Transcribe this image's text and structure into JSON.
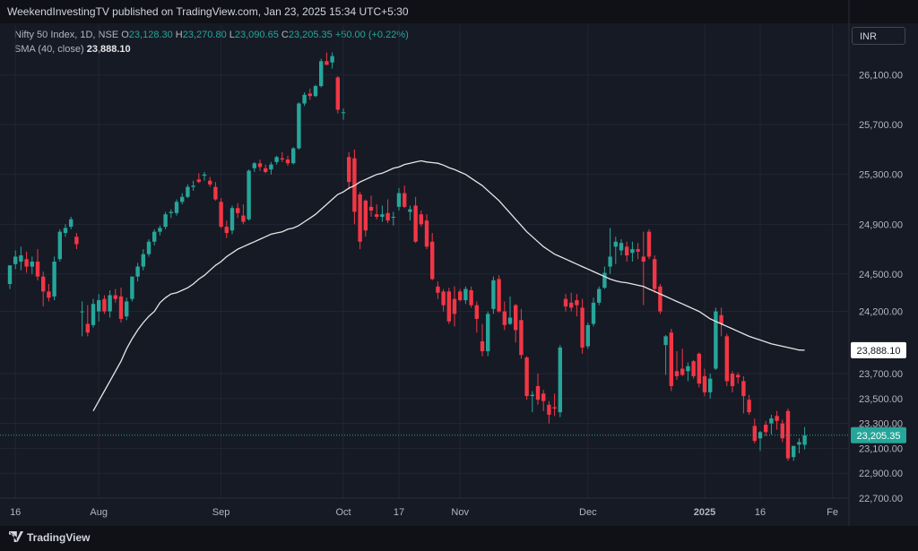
{
  "header": {
    "publish_line": "WeekendInvestingTV published on TradingView.com, Jan 23, 2025 15:34 UTC+5:30"
  },
  "legend": {
    "symbol": "Nifty 50 Index, 1D, NSE",
    "o_label": "O",
    "o_value": "23,128.30",
    "h_label": "H",
    "h_value": "23,270.80",
    "l_label": "L",
    "l_value": "23,090.65",
    "c_label": "C",
    "c_value": "23,205.35",
    "change": "+50.00 (+0.22%)",
    "sma_label": "SMA (40, close)",
    "sma_value": "23,888.10"
  },
  "currency": "INR",
  "footer": {
    "brand": "TradingView"
  },
  "colors": {
    "up": "#26a69a",
    "down": "#f23645",
    "sma": "#e6e6e6",
    "background": "#161a25"
  },
  "chart_data": {
    "type": "candlestick",
    "symbol": "Nifty 50 Index",
    "interval": "1D",
    "exchange": "NSE",
    "ylim": [
      22700,
      26500
    ],
    "y_ticks": [
      "26,100.00",
      "25,700.00",
      "25,300.00",
      "24,900.00",
      "24,500.00",
      "24,200.00",
      "23,700.00",
      "23,500.00",
      "23,300.00",
      "23,100.00",
      "22,900.00",
      "22,700.00"
    ],
    "x_ticks": [
      "16",
      "Aug",
      "Sep",
      "Oct",
      "17",
      "Nov",
      "Dec",
      "2025",
      "16",
      "Fe"
    ],
    "x_tick_index": [
      1,
      16,
      38,
      60,
      70,
      81,
      104,
      125,
      135,
      148
    ],
    "price_label": {
      "value": 23205.35,
      "text": "23,205.35"
    },
    "sma_label": {
      "value": 23888.1,
      "text": "23,888.10"
    },
    "sma": {
      "name": "SMA (40, close)",
      "values": [
        23400,
        23480,
        23560,
        23640,
        23720,
        23800,
        23900,
        23980,
        24050,
        24110,
        24160,
        24200,
        24270,
        24310,
        24340,
        24350,
        24370,
        24390,
        24420,
        24460,
        24490,
        24530,
        24570,
        24600,
        24640,
        24670,
        24700,
        24720,
        24740,
        24760,
        24780,
        24800,
        24820,
        24830,
        24840,
        24860,
        24870,
        24890,
        24920,
        24950,
        24980,
        25020,
        25060,
        25100,
        25140,
        25160,
        25190,
        25210,
        25240,
        25260,
        25280,
        25300,
        25310,
        25330,
        25350,
        25360,
        25380,
        25390,
        25400,
        25410,
        25400,
        25395,
        25390,
        25375,
        25355,
        25340,
        25320,
        25300,
        25270,
        25240,
        25210,
        25170,
        25130,
        25090,
        25040,
        24990,
        24940,
        24890,
        24840,
        24800,
        24760,
        24720,
        24690,
        24660,
        24640,
        24620,
        24600,
        24580,
        24560,
        24540,
        24520,
        24500,
        24480,
        24460,
        24445,
        24435,
        24430,
        24420,
        24410,
        24400,
        24380,
        24360,
        24340,
        24320,
        24300,
        24280,
        24260,
        24240,
        24220,
        24200,
        24170,
        24140,
        24120,
        24100,
        24080,
        24060,
        24040,
        24020,
        24000,
        23985,
        23970,
        23955,
        23940,
        23930,
        23920,
        23910,
        23900,
        23890,
        23888.1
      ]
    },
    "candles": [
      {
        "o": 24420,
        "h": 24570,
        "l": 24380,
        "c": 24570
      },
      {
        "o": 24580,
        "h": 24690,
        "l": 24540,
        "c": 24640
      },
      {
        "o": 24600,
        "h": 24720,
        "l": 24530,
        "c": 24650
      },
      {
        "o": 24620,
        "h": 24680,
        "l": 24510,
        "c": 24560
      },
      {
        "o": 24560,
        "h": 24640,
        "l": 24500,
        "c": 24600
      },
      {
        "o": 24600,
        "h": 24700,
        "l": 24450,
        "c": 24480
      },
      {
        "o": 24480,
        "h": 24520,
        "l": 24240,
        "c": 24360
      },
      {
        "o": 24360,
        "h": 24420,
        "l": 24280,
        "c": 24310
      },
      {
        "o": 24320,
        "h": 24640,
        "l": 24290,
        "c": 24600
      },
      {
        "o": 24620,
        "h": 24860,
        "l": 24600,
        "c": 24840
      },
      {
        "o": 24830,
        "h": 24900,
        "l": 24800,
        "c": 24870
      },
      {
        "o": 24880,
        "h": 24960,
        "l": 24860,
        "c": 24940
      },
      {
        "o": 24800,
        "h": 24830,
        "l": 24700,
        "c": 24740
      },
      {
        "o": 24200,
        "h": 24280,
        "l": 24000,
        "c": 24200
      },
      {
        "o": 24100,
        "h": 24250,
        "l": 24000,
        "c": 24030
      },
      {
        "o": 24090,
        "h": 24300,
        "l": 24070,
        "c": 24260
      },
      {
        "o": 24200,
        "h": 24340,
        "l": 24120,
        "c": 24290
      },
      {
        "o": 24300,
        "h": 24330,
        "l": 24180,
        "c": 24200
      },
      {
        "o": 24200,
        "h": 24370,
        "l": 24150,
        "c": 24330
      },
      {
        "o": 24330,
        "h": 24380,
        "l": 24270,
        "c": 24300
      },
      {
        "o": 24320,
        "h": 24390,
        "l": 24110,
        "c": 24140
      },
      {
        "o": 24160,
        "h": 24310,
        "l": 24130,
        "c": 24280
      },
      {
        "o": 24300,
        "h": 24480,
        "l": 24280,
        "c": 24480
      },
      {
        "o": 24480,
        "h": 24590,
        "l": 24440,
        "c": 24560
      },
      {
        "o": 24560,
        "h": 24700,
        "l": 24530,
        "c": 24660
      },
      {
        "o": 24660,
        "h": 24780,
        "l": 24640,
        "c": 24760
      },
      {
        "o": 24760,
        "h": 24860,
        "l": 24730,
        "c": 24840
      },
      {
        "o": 24840,
        "h": 24890,
        "l": 24810,
        "c": 24870
      },
      {
        "o": 24880,
        "h": 25000,
        "l": 24860,
        "c": 24980
      },
      {
        "o": 24990,
        "h": 25020,
        "l": 24950,
        "c": 25000
      },
      {
        "o": 24990,
        "h": 25100,
        "l": 24970,
        "c": 25080
      },
      {
        "o": 25080,
        "h": 25150,
        "l": 25060,
        "c": 25120
      },
      {
        "o": 25120,
        "h": 25220,
        "l": 25110,
        "c": 25200
      },
      {
        "o": 25200,
        "h": 25250,
        "l": 25170,
        "c": 25210
      },
      {
        "o": 25260,
        "h": 25310,
        "l": 25230,
        "c": 25240
      },
      {
        "o": 25290,
        "h": 25320,
        "l": 25250,
        "c": 25300
      },
      {
        "o": 25250,
        "h": 25280,
        "l": 25200,
        "c": 25220
      },
      {
        "o": 25200,
        "h": 25240,
        "l": 25090,
        "c": 25100
      },
      {
        "o": 25080,
        "h": 25110,
        "l": 24870,
        "c": 24880
      },
      {
        "o": 24880,
        "h": 24930,
        "l": 24790,
        "c": 24830
      },
      {
        "o": 24850,
        "h": 25050,
        "l": 24820,
        "c": 25030
      },
      {
        "o": 25030,
        "h": 25070,
        "l": 24950,
        "c": 24990
      },
      {
        "o": 24970,
        "h": 25060,
        "l": 24900,
        "c": 24920
      },
      {
        "o": 24940,
        "h": 25340,
        "l": 24930,
        "c": 25330
      },
      {
        "o": 25350,
        "h": 25400,
        "l": 25320,
        "c": 25390
      },
      {
        "o": 25390,
        "h": 25420,
        "l": 25330,
        "c": 25360
      },
      {
        "o": 25350,
        "h": 25380,
        "l": 25310,
        "c": 25320
      },
      {
        "o": 25340,
        "h": 25400,
        "l": 25300,
        "c": 25380
      },
      {
        "o": 25400,
        "h": 25450,
        "l": 25380,
        "c": 25440
      },
      {
        "o": 25430,
        "h": 25480,
        "l": 25400,
        "c": 25420
      },
      {
        "o": 25420,
        "h": 25450,
        "l": 25370,
        "c": 25390
      },
      {
        "o": 25390,
        "h": 25520,
        "l": 25380,
        "c": 25510
      },
      {
        "o": 25510,
        "h": 25880,
        "l": 25500,
        "c": 25870
      },
      {
        "o": 25870,
        "h": 25960,
        "l": 25850,
        "c": 25940
      },
      {
        "o": 25950,
        "h": 25990,
        "l": 25900,
        "c": 25930
      },
      {
        "o": 25930,
        "h": 26020,
        "l": 25920,
        "c": 26010
      },
      {
        "o": 26010,
        "h": 26230,
        "l": 26000,
        "c": 26210
      },
      {
        "o": 26210,
        "h": 26280,
        "l": 26180,
        "c": 26180
      },
      {
        "o": 26200,
        "h": 26280,
        "l": 26150,
        "c": 26250
      },
      {
        "o": 26080,
        "h": 26090,
        "l": 25790,
        "c": 25820
      },
      {
        "o": 25800,
        "h": 25830,
        "l": 25740,
        "c": 25800
      },
      {
        "o": 25440,
        "h": 25480,
        "l": 25180,
        "c": 25240
      },
      {
        "o": 25430,
        "h": 25500,
        "l": 24900,
        "c": 25000
      },
      {
        "o": 25140,
        "h": 25160,
        "l": 24700,
        "c": 24760
      },
      {
        "o": 25090,
        "h": 25100,
        "l": 24800,
        "c": 24850
      },
      {
        "o": 25040,
        "h": 25130,
        "l": 24960,
        "c": 25010
      },
      {
        "o": 24980,
        "h": 25060,
        "l": 24940,
        "c": 24960
      },
      {
        "o": 24960,
        "h": 25050,
        "l": 24920,
        "c": 24980
      },
      {
        "o": 24990,
        "h": 25100,
        "l": 24910,
        "c": 24930
      },
      {
        "o": 24960,
        "h": 25000,
        "l": 24890,
        "c": 24960
      },
      {
        "o": 25040,
        "h": 25190,
        "l": 25010,
        "c": 25150
      },
      {
        "o": 25150,
        "h": 25210,
        "l": 25030,
        "c": 25040
      },
      {
        "o": 25000,
        "h": 25050,
        "l": 24930,
        "c": 25020
      },
      {
        "o": 25050,
        "h": 25120,
        "l": 24750,
        "c": 24760
      },
      {
        "o": 24980,
        "h": 25010,
        "l": 24880,
        "c": 24900
      },
      {
        "o": 24930,
        "h": 24980,
        "l": 24700,
        "c": 24720
      },
      {
        "o": 24760,
        "h": 24830,
        "l": 24450,
        "c": 24460
      },
      {
        "o": 24400,
        "h": 24440,
        "l": 24300,
        "c": 24350
      },
      {
        "o": 24360,
        "h": 24380,
        "l": 24200,
        "c": 24250
      },
      {
        "o": 24360,
        "h": 24390,
        "l": 24100,
        "c": 24120
      },
      {
        "o": 24300,
        "h": 24400,
        "l": 24080,
        "c": 24180
      },
      {
        "o": 24360,
        "h": 24380,
        "l": 24280,
        "c": 24290
      },
      {
        "o": 24290,
        "h": 24400,
        "l": 24260,
        "c": 24380
      },
      {
        "o": 24370,
        "h": 24400,
        "l": 24230,
        "c": 24250
      },
      {
        "o": 24250,
        "h": 24280,
        "l": 24030,
        "c": 24140
      },
      {
        "o": 23960,
        "h": 24100,
        "l": 23840,
        "c": 23880
      },
      {
        "o": 23880,
        "h": 24200,
        "l": 23840,
        "c": 24180
      },
      {
        "o": 24220,
        "h": 24480,
        "l": 24180,
        "c": 24450
      },
      {
        "o": 24460,
        "h": 24490,
        "l": 24190,
        "c": 24200
      },
      {
        "o": 24200,
        "h": 24280,
        "l": 24050,
        "c": 24090
      },
      {
        "o": 24100,
        "h": 24320,
        "l": 24090,
        "c": 24150
      },
      {
        "o": 24250,
        "h": 24260,
        "l": 23950,
        "c": 24050
      },
      {
        "o": 24130,
        "h": 24220,
        "l": 23820,
        "c": 23850
      },
      {
        "o": 23830,
        "h": 23840,
        "l": 23490,
        "c": 23520
      },
      {
        "o": 23520,
        "h": 23560,
        "l": 23390,
        "c": 23530
      },
      {
        "o": 23600,
        "h": 23700,
        "l": 23450,
        "c": 23490
      },
      {
        "o": 23540,
        "h": 23570,
        "l": 23400,
        "c": 23480
      },
      {
        "o": 23450,
        "h": 23480,
        "l": 23300,
        "c": 23370
      },
      {
        "o": 23430,
        "h": 23540,
        "l": 23360,
        "c": 23420
      },
      {
        "o": 23390,
        "h": 23930,
        "l": 23350,
        "c": 23910
      },
      {
        "o": 24300,
        "h": 24340,
        "l": 24200,
        "c": 24240
      },
      {
        "o": 24270,
        "h": 24350,
        "l": 24200,
        "c": 24230
      },
      {
        "o": 24290,
        "h": 24340,
        "l": 24160,
        "c": 24250
      },
      {
        "o": 24230,
        "h": 24300,
        "l": 23860,
        "c": 23910
      },
      {
        "o": 23920,
        "h": 24110,
        "l": 23900,
        "c": 24090
      },
      {
        "o": 24100,
        "h": 24310,
        "l": 24080,
        "c": 24270
      },
      {
        "o": 24270,
        "h": 24400,
        "l": 24250,
        "c": 24380
      },
      {
        "o": 24390,
        "h": 24560,
        "l": 24380,
        "c": 24510
      },
      {
        "o": 24560,
        "h": 24870,
        "l": 24500,
        "c": 24640
      },
      {
        "o": 24720,
        "h": 24800,
        "l": 24580,
        "c": 24760
      },
      {
        "o": 24690,
        "h": 24780,
        "l": 24650,
        "c": 24750
      },
      {
        "o": 24720,
        "h": 24760,
        "l": 24600,
        "c": 24650
      },
      {
        "o": 24670,
        "h": 24760,
        "l": 24600,
        "c": 24700
      },
      {
        "o": 24700,
        "h": 24750,
        "l": 24620,
        "c": 24680
      },
      {
        "o": 24640,
        "h": 24840,
        "l": 24250,
        "c": 24600
      },
      {
        "o": 24840,
        "h": 24860,
        "l": 24620,
        "c": 24640
      },
      {
        "o": 24620,
        "h": 24650,
        "l": 24350,
        "c": 24380
      },
      {
        "o": 24400,
        "h": 24420,
        "l": 24180,
        "c": 24200
      },
      {
        "o": 23930,
        "h": 24010,
        "l": 23690,
        "c": 24000
      },
      {
        "o": 24030,
        "h": 24060,
        "l": 23560,
        "c": 23600
      },
      {
        "o": 23720,
        "h": 23880,
        "l": 23650,
        "c": 23680
      },
      {
        "o": 23740,
        "h": 23900,
        "l": 23680,
        "c": 23690
      },
      {
        "o": 23720,
        "h": 23790,
        "l": 23640,
        "c": 23760
      },
      {
        "o": 23800,
        "h": 23810,
        "l": 23660,
        "c": 23680
      },
      {
        "o": 23860,
        "h": 23870,
        "l": 23590,
        "c": 23620
      },
      {
        "o": 23680,
        "h": 23740,
        "l": 23520,
        "c": 23550
      },
      {
        "o": 23550,
        "h": 23700,
        "l": 23500,
        "c": 23660
      },
      {
        "o": 23740,
        "h": 24230,
        "l": 23730,
        "c": 24200
      },
      {
        "o": 24170,
        "h": 24230,
        "l": 24000,
        "c": 24100
      },
      {
        "o": 24000,
        "h": 24020,
        "l": 23600,
        "c": 23640
      },
      {
        "o": 23700,
        "h": 23720,
        "l": 23550,
        "c": 23600
      },
      {
        "o": 23690,
        "h": 23710,
        "l": 23620,
        "c": 23670
      },
      {
        "o": 23640,
        "h": 23680,
        "l": 23380,
        "c": 23520
      },
      {
        "o": 23490,
        "h": 23530,
        "l": 23370,
        "c": 23390
      },
      {
        "o": 23280,
        "h": 23340,
        "l": 23140,
        "c": 23160
      },
      {
        "o": 23180,
        "h": 23240,
        "l": 23080,
        "c": 23230
      },
      {
        "o": 23290,
        "h": 23320,
        "l": 23200,
        "c": 23230
      },
      {
        "o": 23300,
        "h": 23370,
        "l": 23210,
        "c": 23340
      },
      {
        "o": 23360,
        "h": 23400,
        "l": 23250,
        "c": 23320
      },
      {
        "o": 23300,
        "h": 23330,
        "l": 23150,
        "c": 23180
      },
      {
        "o": 23400,
        "h": 23420,
        "l": 23000,
        "c": 23020
      },
      {
        "o": 23030,
        "h": 23100,
        "l": 23000,
        "c": 23120
      },
      {
        "o": 23130,
        "h": 23180,
        "l": 23060,
        "c": 23150
      },
      {
        "o": 23128.3,
        "h": 23270.8,
        "l": 23090.65,
        "c": 23205.35
      }
    ]
  }
}
